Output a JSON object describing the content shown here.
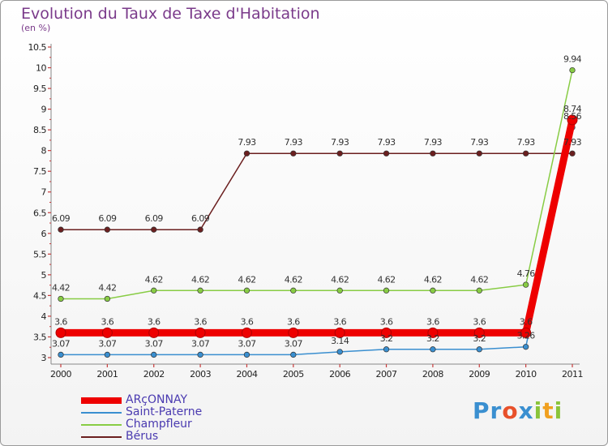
{
  "title": "Evolution du Taux de Taxe d'Habitation",
  "subtitle": "(en %)",
  "logo": {
    "text": "Proxiti",
    "letters": [
      "P",
      "r",
      "o",
      "x",
      "i",
      "t",
      "i"
    ],
    "colors": [
      "#3a8fd0",
      "#3a8fd0",
      "#e8502a",
      "#3a8fd0",
      "#8ac43a",
      "#f0a020",
      "#8ac43a"
    ]
  },
  "chart_data": {
    "type": "line",
    "title": "Evolution du Taux de Taxe d'Habitation",
    "ylabel": "(en %)",
    "xlabel": "",
    "x": [
      "2000",
      "2001",
      "2002",
      "2003",
      "2004",
      "2005",
      "2006",
      "2007",
      "2008",
      "2009",
      "2010",
      "2011"
    ],
    "ylim": [
      3,
      10.5
    ],
    "yticks": [
      "3",
      "3.5",
      "4",
      "4.5",
      "5",
      "5.5",
      "6",
      "6.5",
      "7",
      "7.5",
      "8",
      "8.5",
      "9",
      "9.5",
      "10",
      "10.5"
    ],
    "grid": false,
    "legend_position": "bottom-left",
    "series": [
      {
        "name": "ARçONNAY",
        "color": "#ee0000",
        "values": [
          3.6,
          3.6,
          3.6,
          3.6,
          3.6,
          3.6,
          3.6,
          3.6,
          3.6,
          3.6,
          3.6,
          8.74
        ],
        "labels": [
          "3.6",
          "3.6",
          "3.6",
          "3.6",
          "3.6",
          "3.6",
          "3.6",
          "3.6",
          "3.6",
          "3.6",
          "3.6",
          "8.74"
        ]
      },
      {
        "name": "Saint-Paterne",
        "color": "#3a8fd0",
        "values": [
          3.07,
          3.07,
          3.07,
          3.07,
          3.07,
          3.07,
          3.14,
          3.2,
          3.2,
          3.2,
          3.26,
          8.56
        ],
        "labels": [
          "3.07",
          "3.07",
          "3.07",
          "3.07",
          "3.07",
          "3.07",
          "3.14",
          "3.2",
          "3.2",
          "3.2",
          "3.26",
          "8.56"
        ]
      },
      {
        "name": "Champfleur",
        "color": "#88cc44",
        "values": [
          4.42,
          4.42,
          4.62,
          4.62,
          4.62,
          4.62,
          4.62,
          4.62,
          4.62,
          4.62,
          4.76,
          9.94
        ],
        "labels": [
          "4.42",
          "4.42",
          "4.62",
          "4.62",
          "4.62",
          "4.62",
          "4.62",
          "4.62",
          "4.62",
          "4.62",
          "4.76",
          "9.94"
        ]
      },
      {
        "name": "Bérus",
        "color": "#6b1f1f",
        "values": [
          6.09,
          6.09,
          6.09,
          6.09,
          7.93,
          7.93,
          7.93,
          7.93,
          7.93,
          7.93,
          7.93,
          7.93
        ],
        "labels": [
          "6.09",
          "6.09",
          "6.09",
          "6.09",
          "7.93",
          "7.93",
          "7.93",
          "7.93",
          "7.93",
          "7.93",
          "7.93",
          "7.93"
        ]
      }
    ]
  }
}
